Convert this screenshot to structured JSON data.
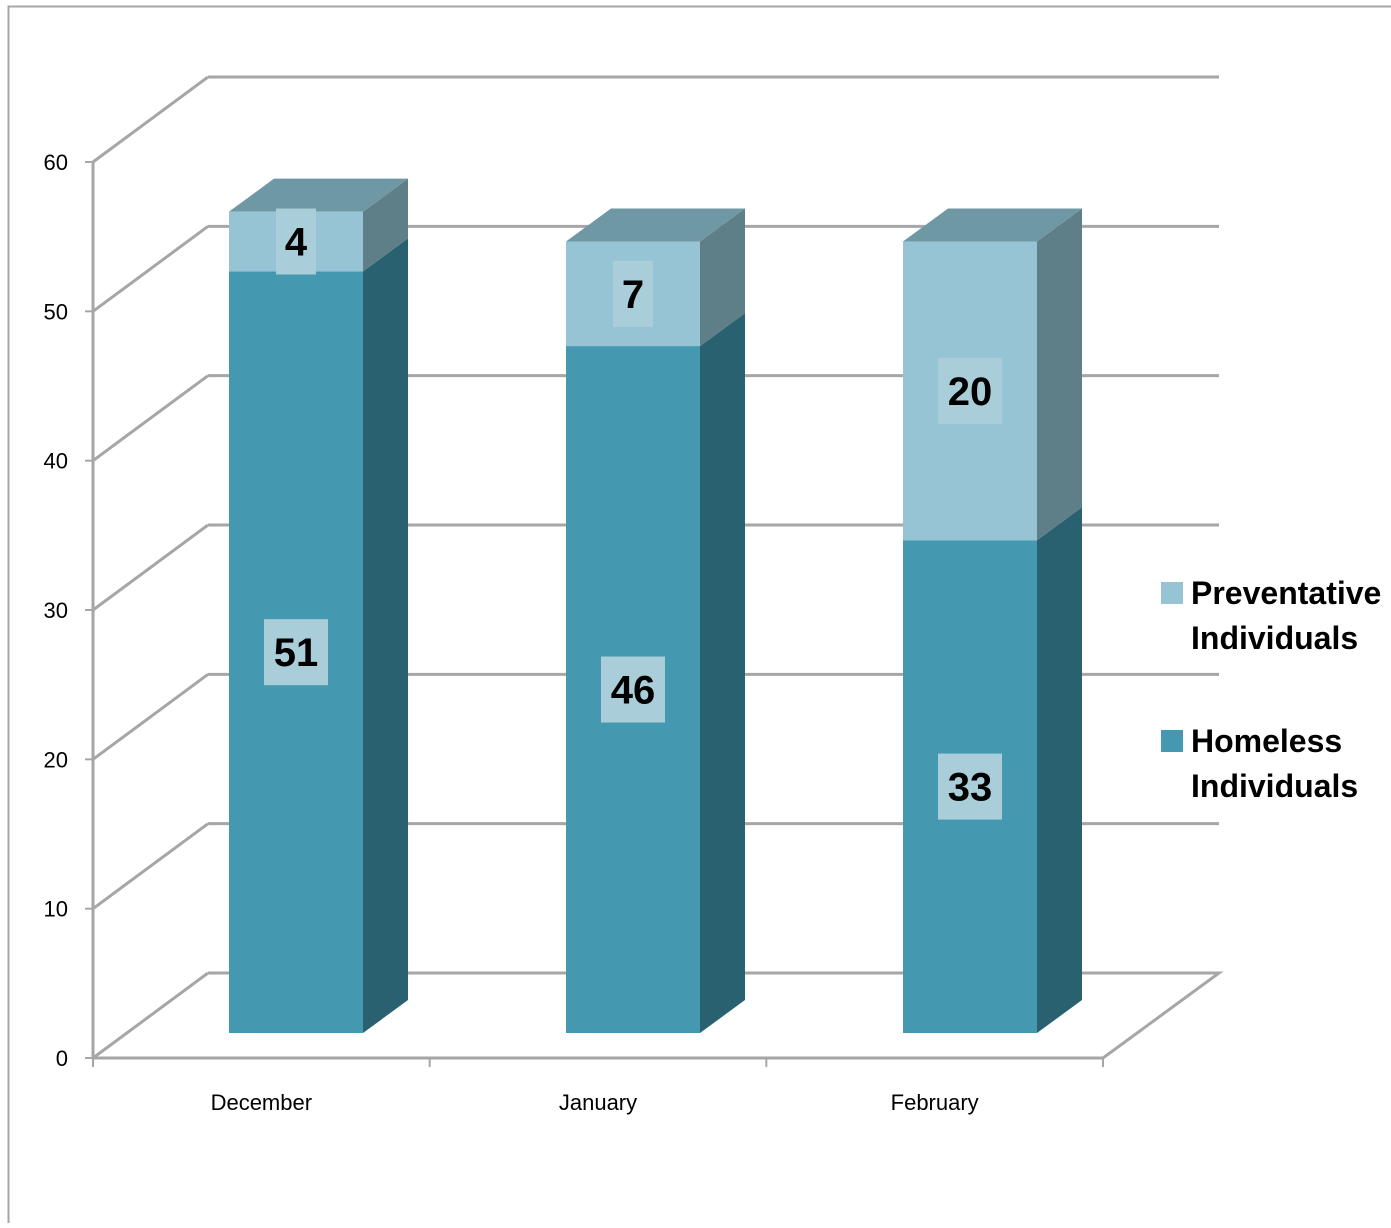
{
  "chart_data": {
    "type": "bar",
    "stacked": true,
    "three_d": true,
    "categories": [
      "December",
      "January",
      "February"
    ],
    "series": [
      {
        "name": "Homeless Individuals",
        "values": [
          51,
          46,
          33
        ],
        "color": "#4499b1",
        "side_color": "#296170"
      },
      {
        "name": "Preventative Individuals",
        "values": [
          4,
          7,
          20
        ],
        "color": "#97c4d4",
        "side_color": "#5e7e88"
      }
    ],
    "ylim": [
      0,
      60
    ],
    "yticks": [
      0,
      10,
      20,
      30,
      40,
      50,
      60
    ],
    "legend_position": "right",
    "legend_order": [
      "Preventative Individuals",
      "Homeless Individuals"
    ],
    "grid": true,
    "grid_color": "#a6a6a6",
    "label_box_color": "#a9cdd9"
  }
}
